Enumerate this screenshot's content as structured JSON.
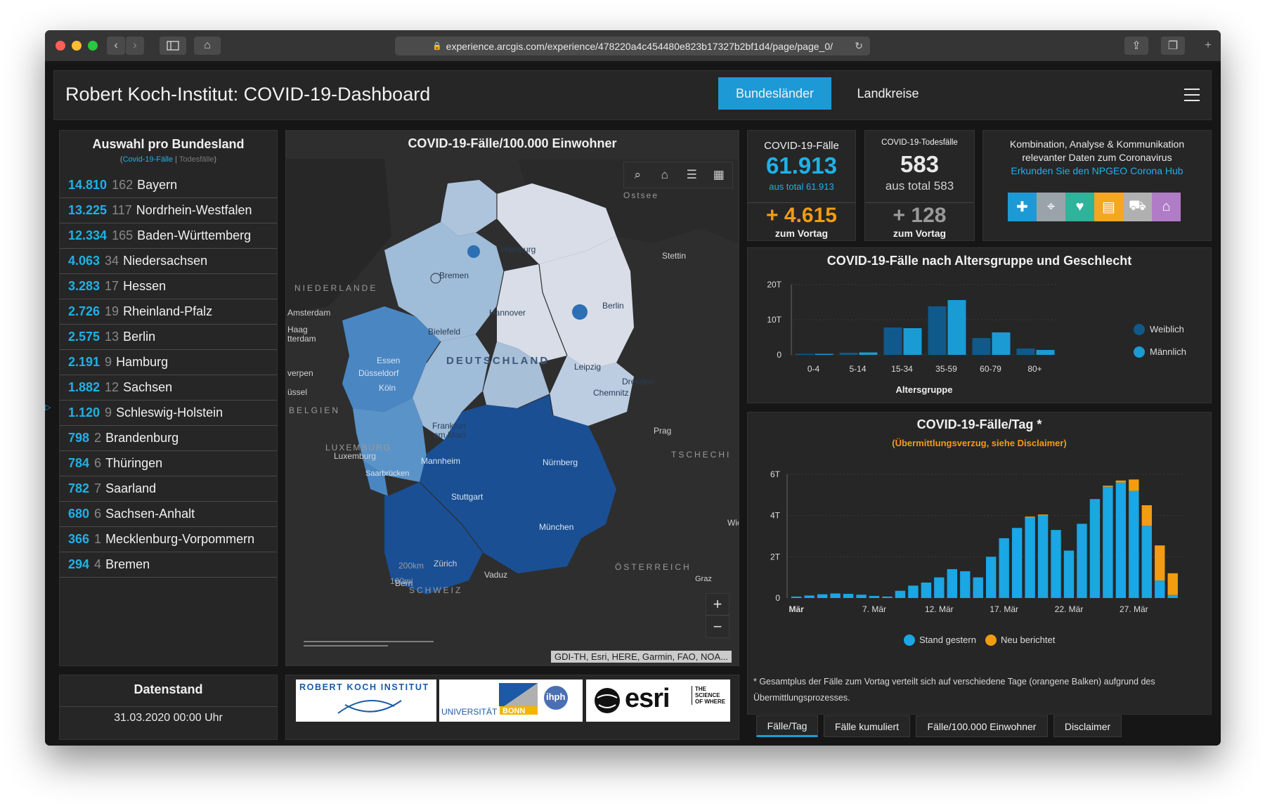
{
  "browser": {
    "url": "experience.arcgis.com/experience/478220a4c454480e823b17327b2bf1d4/page/page_0/"
  },
  "header": {
    "title": "Robert Koch-Institut: COVID-19-Dashboard",
    "tabs": [
      "Bundesländer",
      "Landkreise"
    ]
  },
  "list_panel": {
    "title": "Auswahl pro Bundesland",
    "subtitle_cases": "Covid-19-Fälle",
    "subtitle_sep": " | ",
    "subtitle_deaths": "Todesfälle",
    "states": [
      {
        "cases": "14.810",
        "deaths": "162",
        "name": "Bayern"
      },
      {
        "cases": "13.225",
        "deaths": "117",
        "name": "Nordrhein-Westfalen"
      },
      {
        "cases": "12.334",
        "deaths": "165",
        "name": "Baden-Württemberg"
      },
      {
        "cases": "4.063",
        "deaths": "34",
        "name": "Niedersachsen"
      },
      {
        "cases": "3.283",
        "deaths": "17",
        "name": "Hessen"
      },
      {
        "cases": "2.726",
        "deaths": "19",
        "name": "Rheinland-Pfalz"
      },
      {
        "cases": "2.575",
        "deaths": "13",
        "name": "Berlin"
      },
      {
        "cases": "2.191",
        "deaths": "9",
        "name": "Hamburg"
      },
      {
        "cases": "1.882",
        "deaths": "12",
        "name": "Sachsen"
      },
      {
        "cases": "1.120",
        "deaths": "9",
        "name": "Schleswig-Holstein"
      },
      {
        "cases": "798",
        "deaths": "2",
        "name": "Brandenburg"
      },
      {
        "cases": "784",
        "deaths": "6",
        "name": "Thüringen"
      },
      {
        "cases": "782",
        "deaths": "7",
        "name": "Saarland"
      },
      {
        "cases": "680",
        "deaths": "6",
        "name": "Sachsen-Anhalt"
      },
      {
        "cases": "366",
        "deaths": "1",
        "name": "Mecklenburg-Vorpommern"
      },
      {
        "cases": "294",
        "deaths": "4",
        "name": "Bremen"
      }
    ]
  },
  "date_panel": {
    "title": "Datenstand",
    "value": "31.03.2020 00:00 Uhr"
  },
  "map": {
    "title": "COVID-19-Fälle/100.000 Einwohner",
    "attribution": "GDI-TH, Esri, HERE, Garmin, FAO, NOA...",
    "scale_km": "200km",
    "scale_mi": "100mi",
    "labels": {
      "ostsee": "Ostsee",
      "niederlande": "NIEDERLANDE",
      "deutschland": "DEUTSCHLAND",
      "belgien": "BELGIEN",
      "luxemburg_country": "LUXEMBURG",
      "tschechien": "TSCHECHI",
      "oesterreich": "ÖSTERREICH",
      "schweiz": "SCHWEIZ",
      "hamburg": "Hamburg",
      "bremen": "Bremen",
      "stettin": "Stettin",
      "berlin": "Berlin",
      "amsterdam": "Amsterdam",
      "haag": "Haag",
      "rotterdam": "tterdam",
      "hannover": "Hannover",
      "bielefeld": "Bielefeld",
      "essen": "Essen",
      "duesseldorf": "Düsseldorf",
      "koeln": "Köln",
      "leipzig": "Leipzig",
      "dresden": "Dresden",
      "chemnitz": "Chemnitz",
      "antwerpen": "verpen",
      "brussel": "üssel",
      "frankfurt": "Frankfurt",
      "am_main": "am Main",
      "prag": "Prag",
      "luxemburg_city": "Luxemburg",
      "mannheim": "Mannheim",
      "nuernberg": "Nürnberg",
      "saarbruecken": "Saarbrücken",
      "stuttgart": "Stuttgart",
      "muenchen": "München",
      "wien": "Wie",
      "zuerich": "Zürich",
      "vaduz": "Vaduz",
      "bern": "Bern",
      "graz": "Graz"
    },
    "toolbar_icons": [
      "search-icon",
      "home-icon",
      "list-icon",
      "basemap-icon"
    ]
  },
  "logos": {
    "rki": "ROBERT KOCH INSTITUT",
    "uni": "UNIVERSITÄT",
    "bonn": "BONN",
    "ihph": "ihph",
    "esri": "esri",
    "tagline": "THE SCIENCE OF WHERE"
  },
  "cases_box": {
    "label": "COVID-19-Fälle",
    "value": "61.913",
    "total": "aus total 61.913",
    "delta": "+ 4.615",
    "delta_label": "zum Vortag",
    "color": "#1fb1e6",
    "delta_color": "#f39c12"
  },
  "deaths_box": {
    "label": "COVID-19-Todesfälle",
    "value": "583",
    "total": "aus total 583",
    "delta": "+ 128",
    "delta_label": "zum Vortag"
  },
  "info_box": {
    "text": "Kombination, Analyse & Kommunikation relevanter Daten zum Coronavirus",
    "link": "Erkunden Sie den NPGEO Corona Hub",
    "tiles": [
      {
        "icon": "health-icon",
        "color": "#1d9ad6"
      },
      {
        "icon": "location-icon",
        "color": "#9aa3aa"
      },
      {
        "icon": "heart-icon",
        "color": "#2fb39a"
      },
      {
        "icon": "chart-icon",
        "color": "#f5a623"
      },
      {
        "icon": "car-icon",
        "color": "#b0b0b0"
      },
      {
        "icon": "building-icon",
        "color": "#b07cc6"
      }
    ]
  },
  "age_chart": {
    "title": "COVID-19-Fälle nach Altersgruppe und Geschlecht",
    "chart_data": {
      "type": "bar",
      "categories": [
        "0-4",
        "5-14",
        "15-34",
        "35-59",
        "60-79",
        "80+"
      ],
      "series": [
        {
          "name": "Weiblich",
          "color": "#0f5a8a",
          "values": [
            0.3,
            0.6,
            7.8,
            13.8,
            4.8,
            1.8
          ]
        },
        {
          "name": "Männlich",
          "color": "#1a9bd4",
          "values": [
            0.3,
            0.7,
            7.6,
            15.6,
            6.4,
            1.4
          ]
        }
      ],
      "y_ticks": [
        "0",
        "10T",
        "20T"
      ],
      "ylim": [
        0,
        20
      ],
      "xlabel": "Altersgruppe",
      "legend": "right",
      "grid": true
    }
  },
  "day_chart": {
    "title": "COVID-19-Fälle/Tag *",
    "subtitle": "(Übermittlungsverzug, siehe Disclaimer)",
    "chart_data": {
      "type": "bar",
      "stacked": true,
      "x_labels": [
        "Mär",
        "7. Mär",
        "12. Mär",
        "17. Mär",
        "22. Mär",
        "27. Mär"
      ],
      "y_ticks": [
        "0",
        "2T",
        "4T",
        "6T"
      ],
      "ylim": [
        0,
        6
      ],
      "series": [
        {
          "name": "Stand gestern",
          "color": "#1aa7e3",
          "values": [
            0.07,
            0.12,
            0.18,
            0.22,
            0.2,
            0.16,
            0.1,
            0.07,
            0.35,
            0.6,
            0.75,
            1.0,
            1.4,
            1.3,
            1.0,
            2.0,
            2.9,
            3.4,
            3.9,
            4.0,
            3.3,
            2.3,
            3.6,
            4.8,
            5.4,
            5.6,
            5.2,
            3.5,
            0.85,
            0.15
          ]
        },
        {
          "name": "Neu berichtet",
          "color": "#f29c10",
          "values": [
            0,
            0,
            0,
            0,
            0,
            0,
            0,
            0,
            0,
            0,
            0,
            0,
            0,
            0,
            0,
            0,
            0,
            0,
            0.05,
            0.05,
            0,
            0,
            0,
            0,
            0.05,
            0.1,
            0.55,
            1.0,
            1.7,
            1.05
          ]
        }
      ],
      "legend": "bottom",
      "grid": true
    },
    "footnote": "* Gesamtplus der Fälle zum Vortag verteilt sich auf verschiedene Tage (orangene Balken) aufgrund des Übermittlungsprozesses."
  },
  "bottom_tabs": [
    "Fälle/Tag",
    "Fälle kumuliert",
    "Fälle/100.000 Einwohner",
    "Disclaimer"
  ]
}
